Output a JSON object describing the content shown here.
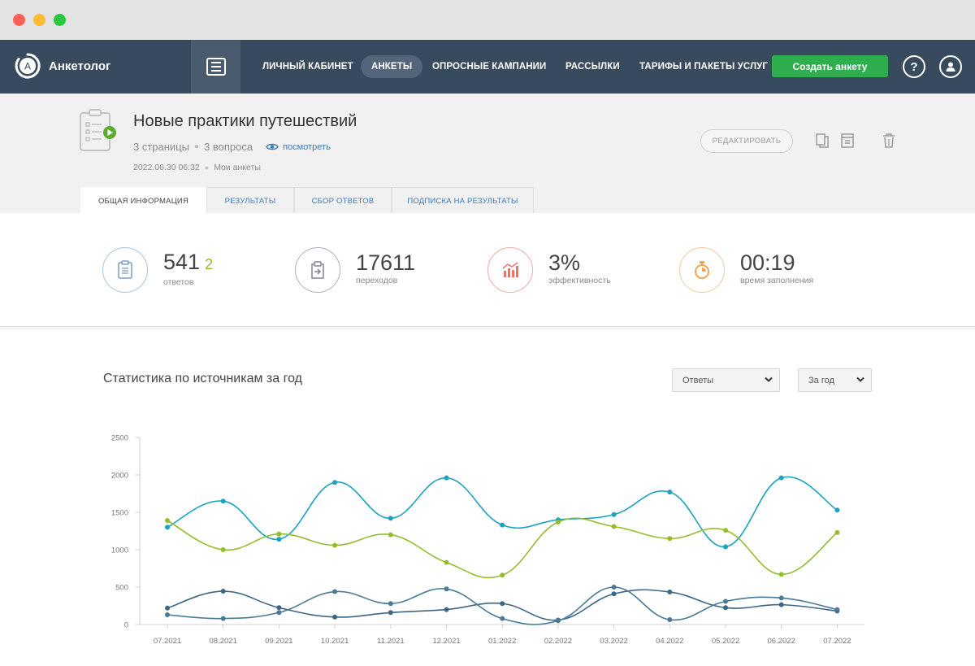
{
  "app": {
    "name": "Анкетолог"
  },
  "nav": {
    "items": [
      {
        "label": "ЛИЧНЫЙ КАБИНЕТ"
      },
      {
        "label": "АНКЕТЫ"
      },
      {
        "label": "ОПРОСНЫЕ КАМПАНИИ"
      },
      {
        "label": "РАССЫЛКИ"
      },
      {
        "label": "ТАРИФЫ И ПАКЕТЫ УСЛУГ"
      }
    ],
    "active": "АНКЕТЫ",
    "create_label": "Создать анкету",
    "help_label": "?"
  },
  "survey": {
    "title": "Новые практики путешествий",
    "pages": "3 страницы",
    "questions": "3 вопроса",
    "view_label": "посмотреть",
    "date": "2022.06.30 06:32",
    "folder": "Мои анкеты",
    "edit_label": "РЕДАКТИРОВАТЬ"
  },
  "tabs": [
    {
      "label": "ОБЩАЯ ИНФОРМАЦИЯ",
      "active": true
    },
    {
      "label": "РЕЗУЛЬТАТЫ",
      "active": false
    },
    {
      "label": "СБОР ОТВЕТОВ",
      "active": false
    },
    {
      "label": "ПОДПИСКА НА РЕЗУЛЬТАТЫ",
      "active": false
    }
  ],
  "stats": [
    {
      "value": "541",
      "extra": "2",
      "label": "ответов",
      "icon": "clipboard-icon",
      "color": "#7aa0c4"
    },
    {
      "value": "17611",
      "extra": "",
      "label": "переходов",
      "icon": "transition-icon",
      "color": "#8a7f96"
    },
    {
      "value": "3%",
      "extra": "",
      "label": "эффективность",
      "icon": "growth-chart-icon",
      "color": "#e8756a"
    },
    {
      "value": "00:19",
      "extra": "",
      "label": "время заполнения",
      "icon": "stopwatch-icon",
      "color": "#f4a24f"
    }
  ],
  "chart_section": {
    "title": "Статистика по источникам за год",
    "metric_select": "Ответы",
    "period_select": "За год"
  },
  "chart_data": {
    "type": "line",
    "categories": [
      "07.2021",
      "08.2021",
      "09.2021",
      "10.2021",
      "11.2021",
      "12.2021",
      "01.2022",
      "02.2022",
      "03.2022",
      "04.2022",
      "05.2022",
      "06.2022",
      "07.2022"
    ],
    "ylim": [
      0,
      2500
    ],
    "yticks": [
      0,
      500,
      1000,
      1500,
      2000,
      2500
    ],
    "grid": false,
    "legend": "none",
    "series": [
      {
        "color": "#1aa3bf",
        "values": [
          1300,
          1650,
          1140,
          1900,
          1420,
          1960,
          1330,
          1400,
          1470,
          1770,
          1040,
          1960,
          1530
        ]
      },
      {
        "color": "#93bd2d",
        "values": [
          1390,
          1000,
          1210,
          1060,
          1200,
          830,
          660,
          1370,
          1310,
          1150,
          1260,
          670,
          1230
        ]
      },
      {
        "color": "#3d6683",
        "values": [
          220,
          445,
          225,
          100,
          160,
          200,
          280,
          60,
          410,
          435,
          225,
          265,
          180
        ]
      },
      {
        "color": "#4a7a96",
        "values": [
          130,
          80,
          160,
          440,
          280,
          475,
          80,
          50,
          500,
          65,
          310,
          355,
          200
        ]
      }
    ]
  }
}
